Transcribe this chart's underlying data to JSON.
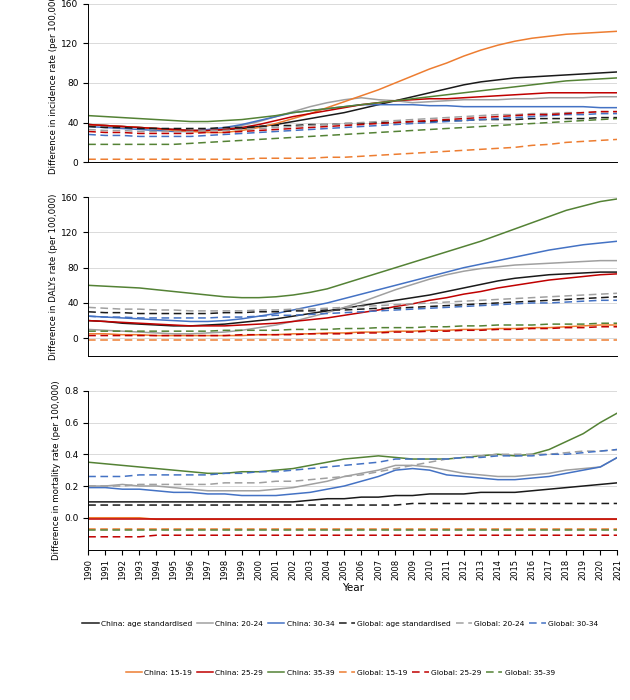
{
  "years": [
    1990,
    1991,
    1992,
    1993,
    1994,
    1995,
    1996,
    1997,
    1998,
    1999,
    2000,
    2001,
    2002,
    2003,
    2004,
    2005,
    2006,
    2007,
    2008,
    2009,
    2010,
    2011,
    2012,
    2013,
    2014,
    2015,
    2016,
    2017,
    2018,
    2019,
    2020,
    2021
  ],
  "panel1": {
    "ylabel": "Difference in incidence rate (per 100,000)",
    "ylim": [
      0,
      160
    ],
    "yticks": [
      0,
      40,
      80,
      120,
      160
    ],
    "china_age_std": [
      38,
      37,
      36,
      35,
      34,
      33,
      32,
      32,
      33,
      34,
      36,
      38,
      41,
      44,
      47,
      50,
      54,
      58,
      62,
      66,
      70,
      74,
      78,
      81,
      83,
      85,
      86,
      87,
      88,
      89,
      90,
      91
    ],
    "china_20_24": [
      38,
      37,
      36,
      35,
      34,
      33,
      32,
      32,
      34,
      37,
      41,
      46,
      51,
      56,
      60,
      63,
      65,
      63,
      62,
      60,
      61,
      62,
      63,
      63,
      63,
      64,
      64,
      65,
      65,
      65,
      66,
      66
    ],
    "china_30_34": [
      36,
      35,
      34,
      33,
      32,
      31,
      31,
      33,
      35,
      38,
      42,
      46,
      50,
      52,
      54,
      56,
      58,
      58,
      58,
      58,
      57,
      57,
      56,
      56,
      56,
      56,
      56,
      56,
      56,
      56,
      55,
      55
    ],
    "china_15_19": [
      38,
      37,
      36,
      35,
      34,
      32,
      31,
      30,
      30,
      32,
      35,
      39,
      44,
      49,
      55,
      61,
      67,
      73,
      80,
      87,
      94,
      100,
      107,
      113,
      118,
      122,
      125,
      127,
      129,
      130,
      131,
      132
    ],
    "china_25_29": [
      38,
      37,
      36,
      35,
      34,
      33,
      32,
      32,
      33,
      35,
      38,
      42,
      46,
      49,
      52,
      55,
      58,
      60,
      62,
      63,
      64,
      64,
      65,
      66,
      67,
      68,
      69,
      70,
      70,
      70,
      70,
      70
    ],
    "china_35_39": [
      47,
      46,
      45,
      44,
      43,
      42,
      41,
      41,
      42,
      43,
      45,
      47,
      50,
      52,
      54,
      56,
      58,
      60,
      62,
      64,
      66,
      68,
      70,
      72,
      74,
      76,
      78,
      80,
      82,
      83,
      84,
      85
    ],
    "global_age_std": [
      36,
      35,
      35,
      34,
      34,
      34,
      34,
      34,
      35,
      35,
      36,
      37,
      37,
      38,
      38,
      39,
      39,
      40,
      40,
      41,
      41,
      42,
      42,
      43,
      43,
      43,
      44,
      44,
      44,
      44,
      45,
      45
    ],
    "global_20_24": [
      33,
      32,
      32,
      31,
      31,
      31,
      31,
      32,
      32,
      33,
      34,
      35,
      36,
      37,
      38,
      39,
      40,
      41,
      42,
      43,
      44,
      45,
      46,
      47,
      48,
      48,
      49,
      49,
      50,
      50,
      51,
      51
    ],
    "global_30_34": [
      28,
      27,
      27,
      26,
      26,
      26,
      26,
      27,
      28,
      29,
      30,
      31,
      32,
      33,
      34,
      35,
      36,
      37,
      38,
      39,
      40,
      41,
      42,
      43,
      44,
      45,
      46,
      47,
      48,
      48,
      49,
      49
    ],
    "global_15_19": [
      3,
      3,
      3,
      3,
      3,
      3,
      3,
      3,
      3,
      3,
      4,
      4,
      4,
      4,
      5,
      5,
      6,
      7,
      8,
      9,
      10,
      11,
      12,
      13,
      14,
      15,
      17,
      18,
      20,
      21,
      22,
      23
    ],
    "global_25_29": [
      31,
      30,
      30,
      29,
      29,
      29,
      29,
      30,
      30,
      31,
      32,
      33,
      34,
      35,
      36,
      37,
      38,
      39,
      40,
      41,
      42,
      43,
      44,
      45,
      46,
      47,
      48,
      48,
      49,
      50,
      51,
      51
    ],
    "global_35_39": [
      18,
      18,
      18,
      18,
      18,
      18,
      19,
      20,
      21,
      22,
      23,
      24,
      25,
      26,
      27,
      28,
      29,
      30,
      31,
      32,
      33,
      34,
      35,
      36,
      37,
      38,
      39,
      40,
      41,
      42,
      43,
      44
    ]
  },
  "panel2": {
    "ylabel": "Difference in DALYs rate (per 100,000)",
    "ylim": [
      -20,
      160
    ],
    "yticks": [
      0,
      40,
      80,
      120,
      160
    ],
    "china_age_std": [
      20,
      19,
      17,
      16,
      15,
      14,
      14,
      15,
      16,
      18,
      20,
      22,
      25,
      28,
      31,
      34,
      37,
      40,
      43,
      46,
      49,
      53,
      57,
      61,
      65,
      68,
      70,
      72,
      73,
      74,
      75,
      75
    ],
    "china_20_24": [
      10,
      9,
      8,
      7,
      6,
      5,
      5,
      6,
      7,
      9,
      12,
      15,
      19,
      24,
      29,
      35,
      41,
      48,
      55,
      61,
      67,
      72,
      76,
      79,
      81,
      83,
      84,
      85,
      86,
      87,
      88,
      88
    ],
    "china_30_34": [
      25,
      24,
      23,
      22,
      21,
      20,
      19,
      19,
      20,
      22,
      25,
      28,
      32,
      36,
      40,
      45,
      50,
      55,
      60,
      65,
      70,
      75,
      80,
      84,
      88,
      92,
      96,
      100,
      103,
      106,
      108,
      110
    ],
    "china_15_19": [
      5,
      5,
      4,
      4,
      3,
      3,
      3,
      3,
      3,
      3,
      4,
      4,
      5,
      5,
      6,
      6,
      7,
      7,
      8,
      8,
      9,
      9,
      10,
      10,
      11,
      11,
      12,
      12,
      13,
      14,
      15,
      15
    ],
    "china_25_29": [
      20,
      19,
      18,
      17,
      16,
      15,
      14,
      14,
      14,
      15,
      16,
      17,
      19,
      21,
      23,
      26,
      29,
      32,
      36,
      39,
      43,
      46,
      50,
      53,
      57,
      60,
      63,
      66,
      68,
      70,
      72,
      73
    ],
    "china_35_39": [
      60,
      59,
      58,
      57,
      55,
      53,
      51,
      49,
      47,
      46,
      46,
      47,
      49,
      52,
      56,
      62,
      68,
      74,
      80,
      86,
      92,
      98,
      104,
      110,
      117,
      124,
      131,
      138,
      145,
      150,
      155,
      158
    ],
    "global_age_std": [
      30,
      29,
      29,
      28,
      28,
      28,
      28,
      28,
      29,
      29,
      30,
      30,
      31,
      31,
      32,
      32,
      33,
      34,
      34,
      35,
      36,
      37,
      38,
      39,
      40,
      41,
      42,
      43,
      44,
      45,
      46,
      47
    ],
    "global_20_24": [
      35,
      34,
      33,
      33,
      32,
      32,
      31,
      31,
      31,
      31,
      32,
      32,
      33,
      33,
      34,
      35,
      36,
      37,
      38,
      39,
      40,
      41,
      42,
      43,
      44,
      45,
      46,
      47,
      48,
      49,
      50,
      51
    ],
    "global_30_34": [
      25,
      24,
      24,
      23,
      23,
      23,
      23,
      23,
      24,
      24,
      25,
      26,
      26,
      27,
      28,
      29,
      30,
      31,
      32,
      33,
      34,
      35,
      36,
      37,
      38,
      39,
      40,
      40,
      41,
      42,
      43,
      43
    ],
    "global_15_19": [
      -2,
      -2,
      -2,
      -2,
      -2,
      -2,
      -2,
      -2,
      -2,
      -2,
      -2,
      -2,
      -2,
      -2,
      -2,
      -2,
      -2,
      -2,
      -2,
      -2,
      -2,
      -2,
      -2,
      -2,
      -2,
      -2,
      -2,
      -2,
      -2,
      -2,
      -2,
      -2
    ],
    "global_25_29": [
      3,
      3,
      3,
      3,
      3,
      3,
      3,
      3,
      3,
      4,
      4,
      4,
      4,
      5,
      5,
      5,
      6,
      6,
      7,
      7,
      8,
      8,
      9,
      9,
      10,
      10,
      11,
      11,
      12,
      12,
      13,
      13
    ],
    "global_35_39": [
      8,
      8,
      8,
      8,
      8,
      8,
      8,
      8,
      9,
      9,
      9,
      9,
      10,
      10,
      10,
      11,
      11,
      12,
      12,
      12,
      13,
      13,
      14,
      14,
      15,
      15,
      15,
      16,
      16,
      16,
      17,
      17
    ]
  },
  "panel3": {
    "ylabel": "Difference in mortality rate (per 100,000)",
    "ylim": [
      -0.2,
      0.8
    ],
    "yticks": [
      0.0,
      0.2,
      0.4,
      0.6,
      0.8
    ],
    "china_age_std": [
      0.1,
      0.1,
      0.1,
      0.1,
      0.1,
      0.1,
      0.1,
      0.1,
      0.1,
      0.1,
      0.1,
      0.1,
      0.1,
      0.11,
      0.12,
      0.12,
      0.13,
      0.13,
      0.14,
      0.14,
      0.15,
      0.15,
      0.15,
      0.16,
      0.16,
      0.16,
      0.17,
      0.18,
      0.19,
      0.2,
      0.21,
      0.22
    ],
    "china_20_24": [
      0.2,
      0.2,
      0.21,
      0.2,
      0.2,
      0.19,
      0.18,
      0.17,
      0.17,
      0.17,
      0.17,
      0.18,
      0.19,
      0.21,
      0.23,
      0.26,
      0.28,
      0.3,
      0.33,
      0.33,
      0.32,
      0.3,
      0.28,
      0.27,
      0.26,
      0.26,
      0.27,
      0.28,
      0.3,
      0.31,
      0.32,
      0.38
    ],
    "china_30_34": [
      0.19,
      0.19,
      0.18,
      0.18,
      0.17,
      0.16,
      0.16,
      0.15,
      0.15,
      0.14,
      0.14,
      0.14,
      0.15,
      0.16,
      0.18,
      0.2,
      0.23,
      0.26,
      0.3,
      0.31,
      0.3,
      0.27,
      0.26,
      0.25,
      0.24,
      0.24,
      0.25,
      0.26,
      0.28,
      0.3,
      0.32,
      0.38
    ],
    "china_15_19": [
      0.0,
      0.0,
      0.0,
      0.0,
      -0.01,
      -0.01,
      -0.01,
      -0.01,
      -0.01,
      -0.01,
      -0.01,
      -0.01,
      -0.01,
      -0.01,
      -0.01,
      -0.01,
      -0.01,
      -0.01,
      -0.01,
      -0.01,
      -0.01,
      -0.01,
      -0.01,
      -0.01,
      -0.01,
      -0.01,
      -0.01,
      -0.01,
      -0.01,
      -0.01,
      -0.01,
      -0.01
    ],
    "china_25_29": [
      -0.01,
      -0.01,
      -0.01,
      -0.01,
      -0.01,
      -0.01,
      -0.01,
      -0.01,
      -0.01,
      -0.01,
      -0.01,
      -0.01,
      -0.01,
      -0.01,
      -0.01,
      -0.01,
      -0.01,
      -0.01,
      -0.01,
      -0.01,
      -0.01,
      -0.01,
      -0.01,
      -0.01,
      -0.01,
      -0.01,
      -0.01,
      -0.01,
      -0.01,
      -0.01,
      -0.01,
      -0.01
    ],
    "china_35_39": [
      0.35,
      0.34,
      0.33,
      0.32,
      0.31,
      0.3,
      0.29,
      0.28,
      0.28,
      0.29,
      0.29,
      0.3,
      0.31,
      0.33,
      0.35,
      0.37,
      0.38,
      0.39,
      0.38,
      0.37,
      0.37,
      0.37,
      0.38,
      0.39,
      0.4,
      0.39,
      0.4,
      0.43,
      0.48,
      0.53,
      0.6,
      0.66
    ],
    "global_age_std": [
      0.08,
      0.08,
      0.08,
      0.08,
      0.08,
      0.08,
      0.08,
      0.08,
      0.08,
      0.08,
      0.08,
      0.08,
      0.08,
      0.08,
      0.08,
      0.08,
      0.08,
      0.08,
      0.08,
      0.09,
      0.09,
      0.09,
      0.09,
      0.09,
      0.09,
      0.09,
      0.09,
      0.09,
      0.09,
      0.09,
      0.09,
      0.09
    ],
    "global_20_24": [
      0.2,
      0.2,
      0.2,
      0.21,
      0.21,
      0.21,
      0.21,
      0.21,
      0.22,
      0.22,
      0.22,
      0.23,
      0.23,
      0.24,
      0.25,
      0.26,
      0.27,
      0.29,
      0.31,
      0.33,
      0.35,
      0.37,
      0.38,
      0.39,
      0.4,
      0.4,
      0.4,
      0.4,
      0.41,
      0.42,
      0.42,
      0.43
    ],
    "global_30_34": [
      0.26,
      0.26,
      0.26,
      0.27,
      0.27,
      0.27,
      0.27,
      0.27,
      0.28,
      0.28,
      0.29,
      0.29,
      0.3,
      0.31,
      0.32,
      0.33,
      0.34,
      0.35,
      0.37,
      0.37,
      0.37,
      0.37,
      0.38,
      0.38,
      0.39,
      0.39,
      0.39,
      0.4,
      0.4,
      0.41,
      0.42,
      0.43
    ],
    "global_15_19": [
      -0.07,
      -0.07,
      -0.07,
      -0.07,
      -0.07,
      -0.07,
      -0.07,
      -0.07,
      -0.07,
      -0.07,
      -0.07,
      -0.07,
      -0.07,
      -0.07,
      -0.07,
      -0.07,
      -0.07,
      -0.07,
      -0.07,
      -0.07,
      -0.07,
      -0.07,
      -0.07,
      -0.07,
      -0.07,
      -0.07,
      -0.07,
      -0.07,
      -0.07,
      -0.07,
      -0.07,
      -0.07
    ],
    "global_25_29": [
      -0.12,
      -0.12,
      -0.12,
      -0.12,
      -0.11,
      -0.11,
      -0.11,
      -0.11,
      -0.11,
      -0.11,
      -0.11,
      -0.11,
      -0.11,
      -0.11,
      -0.11,
      -0.11,
      -0.11,
      -0.11,
      -0.11,
      -0.11,
      -0.11,
      -0.11,
      -0.11,
      -0.11,
      -0.11,
      -0.11,
      -0.11,
      -0.11,
      -0.11,
      -0.11,
      -0.11,
      -0.11
    ],
    "global_35_39": [
      -0.08,
      -0.08,
      -0.08,
      -0.08,
      -0.08,
      -0.08,
      -0.08,
      -0.08,
      -0.08,
      -0.08,
      -0.08,
      -0.08,
      -0.08,
      -0.08,
      -0.08,
      -0.08,
      -0.08,
      -0.08,
      -0.08,
      -0.08,
      -0.08,
      -0.08,
      -0.08,
      -0.08,
      -0.08,
      -0.08,
      -0.08,
      -0.08,
      -0.08,
      -0.08,
      -0.08,
      -0.08
    ]
  },
  "colors": {
    "age_std": "#1a1a1a",
    "20_24": "#a0a0a0",
    "30_34": "#4472c4",
    "15_19": "#ed7d31",
    "25_29": "#c00000",
    "35_39": "#548235"
  }
}
